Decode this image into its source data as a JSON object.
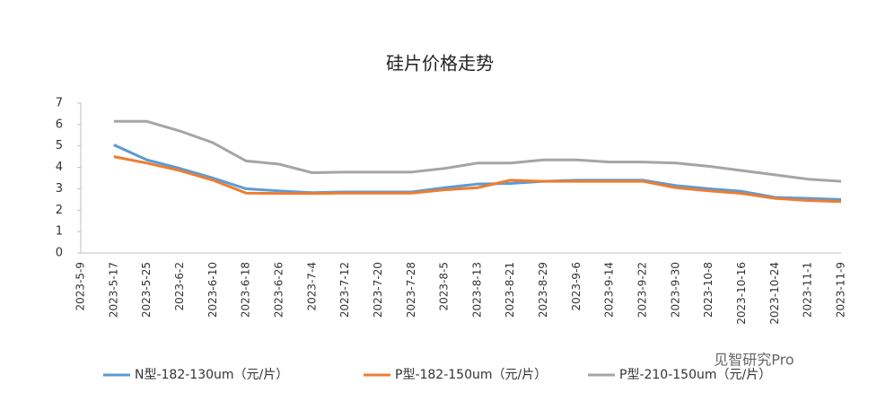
{
  "chart_data": {
    "type": "line",
    "title": "硅片价格走势",
    "categories": [
      "2023-5-9",
      "2023-5-17",
      "2023-5-25",
      "2023-6-2",
      "2023-6-10",
      "2023-6-18",
      "2023-6-26",
      "2023-7-4",
      "2023-7-12",
      "2023-7-20",
      "2023-7-28",
      "2023-8-5",
      "2023-8-13",
      "2023-8-21",
      "2023-8-29",
      "2023-9-6",
      "2023-9-14",
      "2023-9-22",
      "2023-9-30",
      "2023-10-8",
      "2023-10-16",
      "2023-10-24",
      "2023-11-1",
      "2023-11-9"
    ],
    "series": [
      {
        "name": "N型-182-130um（元/片）",
        "color": "#5b9bd5",
        "values": [
          null,
          5.05,
          4.35,
          3.95,
          3.5,
          3.0,
          2.9,
          2.82,
          2.85,
          2.85,
          2.85,
          3.05,
          3.22,
          3.25,
          3.35,
          3.4,
          3.4,
          3.4,
          3.15,
          3.0,
          2.88,
          2.6,
          2.55,
          2.5
        ]
      },
      {
        "name": "P型-182-150um（元/片）",
        "color": "#ed7d31",
        "values": [
          null,
          4.5,
          4.2,
          3.85,
          3.4,
          2.8,
          2.78,
          2.78,
          2.8,
          2.8,
          2.8,
          2.95,
          3.05,
          3.4,
          3.35,
          3.35,
          3.35,
          3.35,
          3.05,
          2.9,
          2.78,
          2.55,
          2.45,
          2.4
        ]
      },
      {
        "name": "P型-210-150um（元/片）",
        "color": "#a5a5a5",
        "values": [
          null,
          6.15,
          6.15,
          5.7,
          5.15,
          4.3,
          4.15,
          3.75,
          3.78,
          3.78,
          3.78,
          3.95,
          4.2,
          4.2,
          4.35,
          4.35,
          4.25,
          4.25,
          4.2,
          4.05,
          3.85,
          3.65,
          3.45,
          3.35
        ]
      }
    ],
    "ylim": [
      0,
      7
    ],
    "yticks": [
      0,
      1,
      2,
      3,
      4,
      5,
      6,
      7
    ],
    "grid": false,
    "legend": "bottom",
    "watermark": "见智研究Pro"
  }
}
